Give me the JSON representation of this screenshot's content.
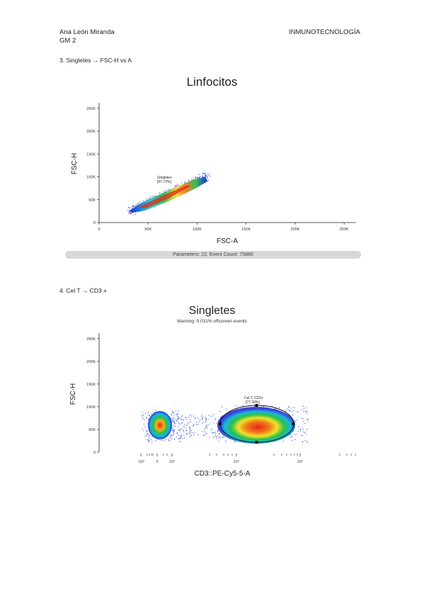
{
  "header": {
    "author": "Ana León Miranda",
    "group": "GM 2",
    "subject": "INMUNOTECNOLOGÍA"
  },
  "section3": {
    "heading": "3. Singletes → FSC-H vs A"
  },
  "plot1": {
    "title": "Linfocitos",
    "ylabel": "FSC-H",
    "xlabel": "FSC-A",
    "gate_name": "Singletes",
    "gate_pct": "[97.72%]",
    "status": "Parameters: 22, Event Count: 75880",
    "xticks": [
      "0",
      "50K",
      "100K",
      "150K",
      "200K",
      "250K"
    ],
    "yticks": [
      "0",
      "50K",
      "100K",
      "150K",
      "200K",
      "250K"
    ]
  },
  "section4": {
    "heading": "4. Cel T → CD3 +"
  },
  "plot2": {
    "title": "Singletes",
    "subtitle": "Warning: 0.031% offscreen events",
    "ylabel": "FSC-H",
    "xlabel": "CD3::PE-Cy5-5-A",
    "gate_name": "Cel T, CD3+",
    "gate_pct": "[77.39%]",
    "xticks": [
      "-10³",
      "0",
      "10³",
      "10⁴",
      "10⁵"
    ],
    "yticks": [
      "0",
      "50K",
      "100K",
      "150K",
      "200K",
      "250K"
    ]
  },
  "chart_data": [
    {
      "type": "scatter",
      "title": "Linfocitos",
      "xlabel": "FSC-A",
      "ylabel": "FSC-H",
      "xlim": [
        0,
        262144
      ],
      "ylim": [
        0,
        262144
      ],
      "gates": [
        {
          "name": "Singletes",
          "percent": 97.72
        }
      ],
      "event_count": 75880
    },
    {
      "type": "scatter",
      "title": "Singletes",
      "xlabel": "CD3::PE-Cy5-5-A",
      "ylabel": "FSC-H",
      "x_scale": "biexponential",
      "ylim": [
        0,
        262144
      ],
      "gates": [
        {
          "name": "Cel T, CD3+",
          "percent": 77.39
        }
      ]
    }
  ],
  "colors": {
    "density_low": "#1a22d6",
    "density_mid": "#21c35a",
    "density_high": "#ffe82a",
    "density_peak": "#e8261a",
    "status_bar": "#d8d8d8"
  }
}
